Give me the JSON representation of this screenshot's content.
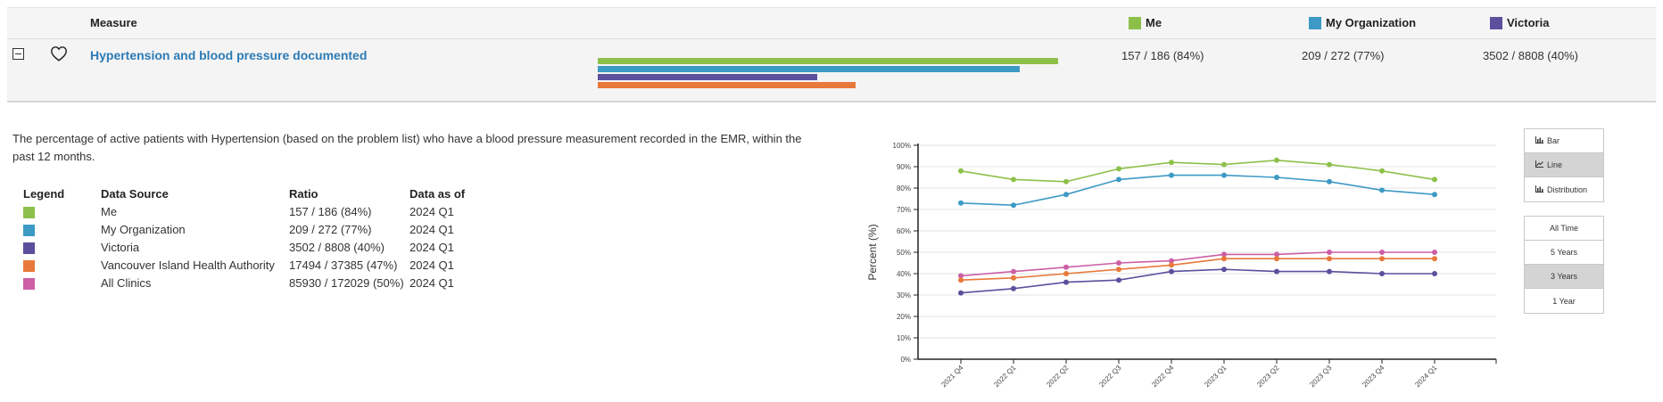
{
  "header": {
    "measure_label": "Measure",
    "me_label": "Me",
    "org_label": "My Organization",
    "victoria_label": "Victoria"
  },
  "colors": {
    "me": "#8dc04a",
    "org": "#3d9ac4",
    "victoria": "#5b509d",
    "vancouver_island": "#e8793a",
    "all_clinics": "#cc5fa6"
  },
  "measure": {
    "title": "Hypertension and blood pressure documented",
    "me_value": "157 / 186 (84%)",
    "org_value": "209 / 272 (77%)",
    "victoria_value": "3502 / 8808 (40%)",
    "bars": [
      {
        "name": "Me",
        "percent": 84
      },
      {
        "name": "My Organization",
        "percent": 77
      },
      {
        "name": "Victoria",
        "percent": 40
      },
      {
        "name": "Vancouver Island Health Authority",
        "percent": 47
      }
    ]
  },
  "description": "The percentage of active patients with Hypertension (based on the problem list) who have a blood pressure measurement recorded in the EMR, within the past 12 months.",
  "legend": {
    "headers": {
      "legend": "Legend",
      "source": "Data Source",
      "ratio": "Ratio",
      "asof": "Data as of"
    },
    "rows": [
      {
        "source": "Me",
        "ratio": "157 / 186 (84%)",
        "asof": "2024 Q1"
      },
      {
        "source": "My Organization",
        "ratio": "209 / 272 (77%)",
        "asof": "2024 Q1"
      },
      {
        "source": "Victoria",
        "ratio": "3502 / 8808 (40%)",
        "asof": "2024 Q1"
      },
      {
        "source": "Vancouver Island Health Authority",
        "ratio": "17494 / 37385 (47%)",
        "asof": "2024 Q1"
      },
      {
        "source": "All Clinics",
        "ratio": "85930 / 172029 (50%)",
        "asof": "2024 Q1"
      }
    ]
  },
  "chart_controls": {
    "types": [
      {
        "label": "Bar",
        "icon": "bar-chart-icon",
        "active": false
      },
      {
        "label": "Line",
        "icon": "line-chart-icon",
        "active": true
      },
      {
        "label": "Distribution",
        "icon": "distribution-chart-icon",
        "active": false
      }
    ],
    "ranges": [
      {
        "label": "All Time",
        "active": false
      },
      {
        "label": "5 Years",
        "active": false
      },
      {
        "label": "3 Years",
        "active": true
      },
      {
        "label": "1 Year",
        "active": false
      }
    ]
  },
  "chart_data": {
    "type": "line",
    "ylabel": "Percent (%)",
    "xlabel": "",
    "ylim": [
      0,
      100
    ],
    "yticks": [
      "0%",
      "10%",
      "20%",
      "30%",
      "40%",
      "50%",
      "60%",
      "70%",
      "80%",
      "90%",
      "100%"
    ],
    "grid": true,
    "categories": [
      "2021 Q4",
      "2022 Q1",
      "2022 Q2",
      "2022 Q3",
      "2022 Q4",
      "2023 Q1",
      "2023 Q2",
      "2023 Q3",
      "2023 Q4",
      "2024 Q1"
    ],
    "series": [
      {
        "name": "Me",
        "color": "#8dc04a",
        "values": [
          88,
          84,
          83,
          89,
          92,
          91,
          93,
          91,
          88,
          84
        ]
      },
      {
        "name": "My Organization",
        "color": "#3d9ac4",
        "values": [
          73,
          72,
          77,
          84,
          86,
          86,
          85,
          83,
          79,
          77
        ]
      },
      {
        "name": "All Clinics",
        "color": "#cc5fa6",
        "values": [
          39,
          41,
          43,
          45,
          46,
          49,
          49,
          50,
          50,
          50
        ]
      },
      {
        "name": "Vancouver Island Health Authority",
        "color": "#e8793a",
        "values": [
          37,
          38,
          40,
          42,
          44,
          47,
          47,
          47,
          47,
          47
        ]
      },
      {
        "name": "Victoria",
        "color": "#5b509d",
        "values": [
          31,
          33,
          36,
          37,
          41,
          42,
          41,
          41,
          40,
          40
        ]
      }
    ]
  }
}
